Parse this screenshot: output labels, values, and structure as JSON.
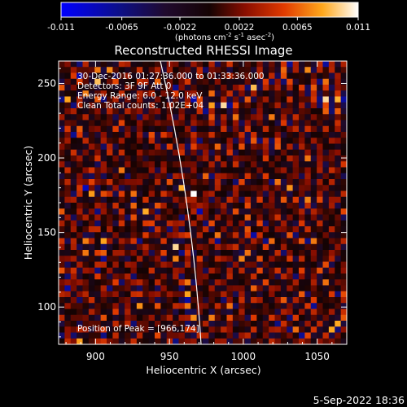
{
  "colorbar": {
    "ticks": [
      "-0.011",
      "-0.0065",
      "-0.0022",
      "0.0022",
      "0.0065",
      "0.011"
    ],
    "unit_base": "(photons cm",
    "unit_exp1": "-2",
    "unit_mid": " s",
    "unit_exp2": "-1",
    "unit_end": " asec",
    "unit_exp3": "-2",
    "unit_close": ")"
  },
  "chart_data": {
    "type": "heatmap",
    "title": "Reconstructed RHESSI Image",
    "xlabel": "Heliocentric X (arcsec)",
    "ylabel": "Heliocentric Y (arcsec)",
    "xlim": [
      875,
      1070
    ],
    "ylim": [
      75,
      265
    ],
    "xticks": [
      "900",
      "950",
      "1000",
      "1050"
    ],
    "yticks": [
      "100",
      "150",
      "200",
      "250"
    ],
    "color_range": [
      -0.011,
      0.011
    ],
    "colormap": "rainbow-hot",
    "info_lines": [
      "30-Dec-2016 01:27:36.000 to 01:33:36.000",
      "Detectors: 3F 9F  Att 0",
      "Energy Range: 6.0 - 12.0 keV",
      "Clean     Total counts: 1.02E+04"
    ],
    "peak_label": "Position of Peak = [966,174]",
    "peak": {
      "x": 966,
      "y": 174
    }
  },
  "footer": {
    "timestamp": "5-Sep-2022 18:36"
  }
}
